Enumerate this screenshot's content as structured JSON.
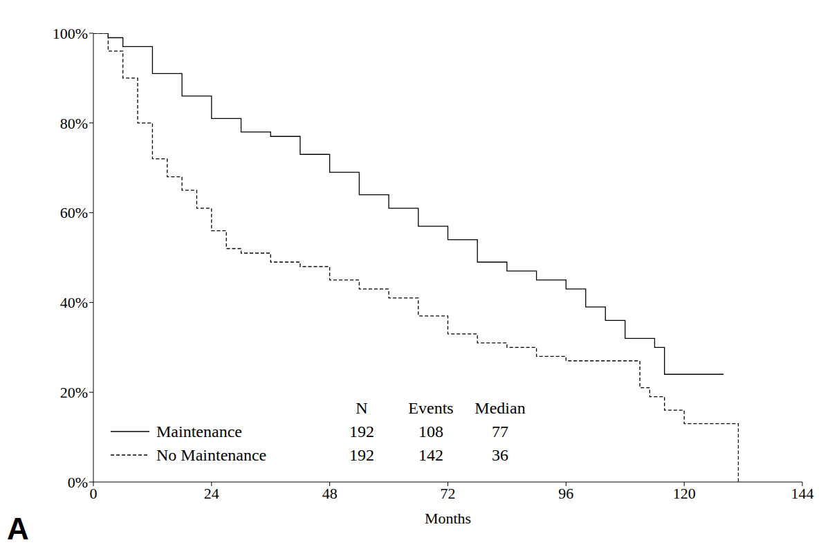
{
  "chart_data": {
    "type": "line",
    "panel_label": "A",
    "x_label": "Months",
    "xlim": [
      0,
      144
    ],
    "xticks": [
      0,
      24,
      48,
      72,
      96,
      120,
      144
    ],
    "ylim": [
      0,
      100
    ],
    "yticks": [
      {
        "value": 0,
        "label": "0%"
      },
      {
        "value": 20,
        "label": "20%"
      },
      {
        "value": 40,
        "label": "40%"
      },
      {
        "value": 60,
        "label": "60%"
      },
      {
        "value": 80,
        "label": "80%"
      },
      {
        "value": 100,
        "label": "100%"
      }
    ],
    "grid": false,
    "table_header": [
      "N",
      "Events",
      "Median"
    ],
    "series": [
      {
        "name": "Maintenance",
        "color": "#000000",
        "line_style": "solid",
        "n": 192,
        "events": 108,
        "median": 77,
        "x": [
          0,
          3,
          6,
          12,
          18,
          24,
          30,
          36,
          42,
          48,
          54,
          60,
          66,
          72,
          78,
          84,
          90,
          96,
          100,
          104,
          108,
          114,
          116,
          128
        ],
        "values": [
          100,
          99,
          97,
          91,
          86,
          81,
          78,
          77,
          73,
          69,
          64,
          61,
          57,
          54,
          49,
          47,
          45,
          43,
          39,
          36,
          32,
          30,
          24,
          24
        ]
      },
      {
        "name": "No Maintenance",
        "color": "#000000",
        "line_style": "dashed",
        "n": 192,
        "events": 142,
        "median": 36,
        "x": [
          0,
          3,
          6,
          9,
          12,
          15,
          18,
          21,
          24,
          27,
          30,
          36,
          42,
          48,
          54,
          60,
          66,
          72,
          78,
          84,
          90,
          96,
          110,
          111,
          113,
          116,
          120,
          130,
          131
        ],
        "values": [
          100,
          96,
          90,
          80,
          72,
          68,
          65,
          61,
          56,
          52,
          51,
          49,
          48,
          45,
          43,
          41,
          37,
          33,
          31,
          30,
          28,
          27,
          27,
          21,
          19,
          16,
          13,
          13,
          0
        ]
      }
    ]
  }
}
